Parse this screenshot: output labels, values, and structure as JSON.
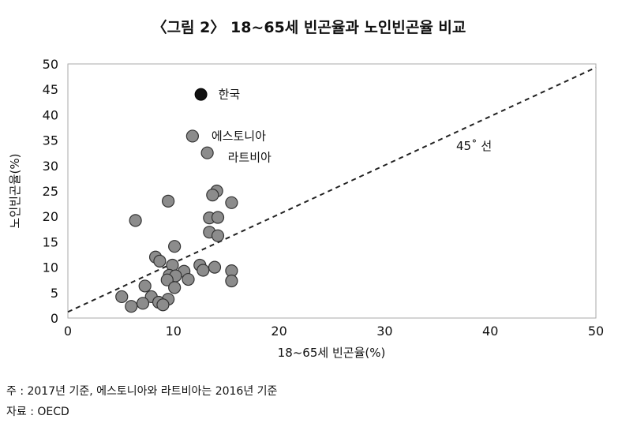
{
  "chart_data": {
    "type": "scatter",
    "title": "〈그림 2〉 18~65세 빈곤율과 노인빈곤율 비교",
    "xlabel": "18~65세 빈곤율(%)",
    "ylabel": "노인빈곤율(%)",
    "xlim": [
      0,
      50
    ],
    "ylim": [
      0,
      50
    ],
    "xticks": [
      0,
      10,
      20,
      30,
      40,
      50
    ],
    "yticks": [
      0,
      5,
      10,
      15,
      20,
      25,
      30,
      35,
      40,
      45,
      50
    ],
    "grid": false,
    "reference_line": {
      "label": "45˚ 선",
      "x": [
        0,
        50
      ],
      "y": [
        1.2,
        49.3
      ]
    },
    "highlight": {
      "label": "한국",
      "x": 12.6,
      "y": 44.0,
      "color": "#111111"
    },
    "labeled_points": [
      {
        "label": "에스토니아",
        "x": 11.8,
        "y": 35.8
      },
      {
        "label": "라트비아",
        "x": 13.2,
        "y": 32.5
      }
    ],
    "points": [
      [
        6.4,
        19.2
      ],
      [
        9.5,
        23.0
      ],
      [
        14.1,
        25.0
      ],
      [
        13.7,
        24.2
      ],
      [
        15.5,
        22.7
      ],
      [
        13.4,
        19.7
      ],
      [
        14.2,
        19.8
      ],
      [
        13.4,
        16.9
      ],
      [
        14.2,
        16.2
      ],
      [
        10.1,
        14.1
      ],
      [
        8.3,
        12.0
      ],
      [
        8.7,
        11.2
      ],
      [
        9.9,
        10.4
      ],
      [
        12.5,
        10.4
      ],
      [
        12.8,
        9.4
      ],
      [
        11.0,
        9.2
      ],
      [
        13.9,
        10.0
      ],
      [
        15.5,
        9.3
      ],
      [
        15.5,
        7.3
      ],
      [
        9.6,
        8.4
      ],
      [
        10.2,
        8.3
      ],
      [
        9.4,
        7.5
      ],
      [
        11.4,
        7.6
      ],
      [
        10.1,
        6.0
      ],
      [
        7.3,
        6.3
      ],
      [
        5.1,
        4.2
      ],
      [
        7.9,
        4.2
      ],
      [
        9.5,
        3.7
      ],
      [
        8.6,
        3.1
      ],
      [
        7.1,
        2.9
      ],
      [
        6.0,
        2.3
      ],
      [
        9.0,
        2.6
      ]
    ],
    "point_color": "#8c8c8c",
    "line_color": "#222222"
  },
  "notes": {
    "note": "주 : 2017년 기준, 에스토니아와 라트비아는 2016년 기준",
    "source": "자료 : OECD"
  }
}
